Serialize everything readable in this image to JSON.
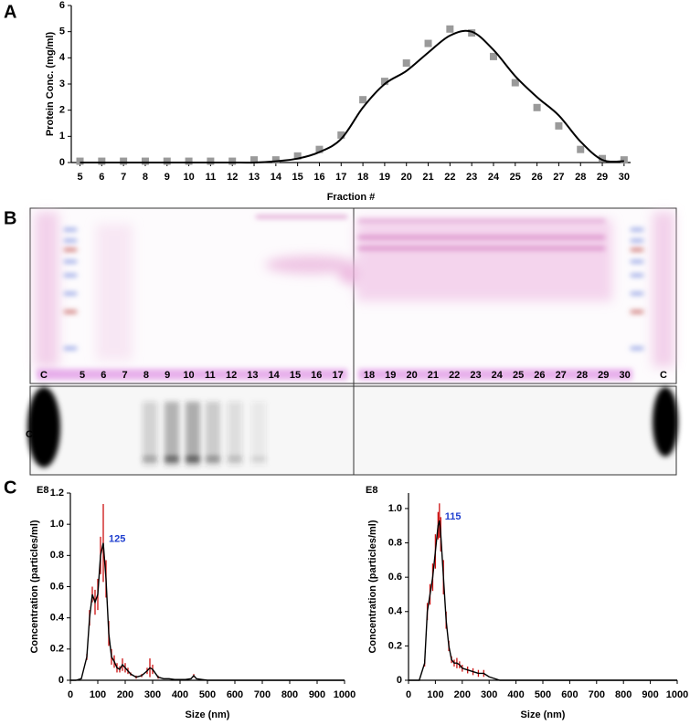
{
  "panel_labels": [
    "A",
    "B",
    "C"
  ],
  "chart_data": [
    {
      "type": "line",
      "y_label": "Protein Conc. (mg/ml)",
      "x_label": "Fraction #",
      "x": [
        5,
        6,
        7,
        8,
        9,
        10,
        11,
        12,
        13,
        14,
        15,
        16,
        17,
        18,
        19,
        20,
        21,
        22,
        23,
        24,
        25,
        26,
        27,
        28,
        29,
        30
      ],
      "xlim": [
        4.6,
        30.3
      ],
      "xticks": [
        5,
        6,
        7,
        8,
        9,
        10,
        11,
        12,
        13,
        14,
        15,
        16,
        17,
        18,
        19,
        20,
        21,
        22,
        23,
        24,
        25,
        26,
        27,
        28,
        29,
        30
      ],
      "ylim": [
        0,
        6
      ],
      "yticks": [
        0,
        1,
        2,
        3,
        4,
        5,
        6
      ],
      "series": [
        {
          "color": "#9a9a9a",
          "marker": "square",
          "line": false,
          "values": [
            0.05,
            0.05,
            0.05,
            0.05,
            0.05,
            0.05,
            0.05,
            0.05,
            0.1,
            0.1,
            0.25,
            0.5,
            1.05,
            2.4,
            3.1,
            3.8,
            4.55,
            5.1,
            4.95,
            4.05,
            3.05,
            2.1,
            1.4,
            0.5,
            0.15,
            0.1
          ]
        },
        {
          "color": "#000000",
          "line": true,
          "smooth": true,
          "values": [
            0,
            0,
            0,
            0,
            0,
            0,
            0,
            0,
            0,
            0.05,
            0.15,
            0.4,
            0.9,
            2.1,
            3.0,
            3.5,
            4.2,
            4.85,
            5.0,
            4.3,
            3.3,
            2.5,
            1.8,
            0.8,
            0.1,
            0.05
          ]
        }
      ]
    },
    {
      "type": "line",
      "y_label": "Concentration (particles/ml)",
      "x_label": "Size (nm)",
      "y_unit": "E8",
      "annotation": "125",
      "annotation_color": "#1f3fcf",
      "x": [
        0,
        20,
        40,
        60,
        70,
        80,
        90,
        100,
        110,
        120,
        130,
        140,
        150,
        160,
        170,
        180,
        190,
        200,
        210,
        220,
        240,
        260,
        280,
        290,
        300,
        320,
        340,
        360,
        380,
        400,
        420,
        440,
        450,
        460,
        480,
        500,
        600,
        700,
        800,
        900,
        1000
      ],
      "xlim": [
        0,
        1000
      ],
      "xticks": [
        0,
        100,
        200,
        300,
        400,
        500,
        600,
        700,
        800,
        900,
        1000
      ],
      "ylim": [
        0,
        1.2
      ],
      "yticks": [
        0,
        0.2,
        0.4,
        0.6,
        0.8,
        {
          "value": 1,
          "label": "1.0"
        },
        1.2
      ],
      "series": [
        {
          "color": "#000000",
          "line": true,
          "error_color": "#cc1111",
          "values": [
            0,
            0,
            0.01,
            0.15,
            0.4,
            0.55,
            0.5,
            0.55,
            0.8,
            0.88,
            0.65,
            0.3,
            0.15,
            0.12,
            0.08,
            0.07,
            0.1,
            0.08,
            0.06,
            0.04,
            0.02,
            0.03,
            0.06,
            0.08,
            0.07,
            0.02,
            0.01,
            0.01,
            0.005,
            0.005,
            0.005,
            0.01,
            0.03,
            0.01,
            0.005,
            0,
            0,
            0,
            0,
            0,
            0
          ],
          "errors": [
            0,
            0,
            0,
            0.02,
            0.05,
            0.05,
            0.08,
            0.1,
            0.12,
            0.25,
            0.12,
            0.08,
            0.05,
            0.04,
            0.03,
            0.02,
            0.04,
            0.03,
            0.02,
            0.01,
            0.01,
            0.01,
            0.02,
            0.06,
            0.03,
            0.01,
            0,
            0,
            0,
            0,
            0,
            0,
            0.01,
            0,
            0,
            0,
            0,
            0,
            0,
            0,
            0
          ]
        }
      ]
    },
    {
      "type": "line",
      "y_label": "Concentration (particles/ml)",
      "x_label": "Size (nm)",
      "y_unit": "E8",
      "annotation": "115",
      "annotation_color": "#1f3fcf",
      "x": [
        0,
        20,
        40,
        60,
        70,
        80,
        90,
        100,
        110,
        115,
        120,
        130,
        140,
        150,
        160,
        170,
        180,
        190,
        200,
        220,
        240,
        260,
        280,
        300,
        320,
        340,
        400,
        500,
        600,
        700,
        800,
        900,
        1000
      ],
      "xlim": [
        0,
        1000
      ],
      "xticks": [
        0,
        100,
        200,
        300,
        400,
        500,
        600,
        700,
        800,
        900,
        1000
      ],
      "ylim": [
        0,
        1.09
      ],
      "yticks": [
        0,
        0.2,
        0.4,
        0.6,
        0.8,
        {
          "value": 1,
          "label": "1.0"
        }
      ],
      "series": [
        {
          "color": "#000000",
          "line": true,
          "error_color": "#cc1111",
          "values": [
            0,
            0,
            0,
            0.1,
            0.4,
            0.5,
            0.6,
            0.75,
            0.9,
            0.93,
            0.85,
            0.6,
            0.35,
            0.2,
            0.12,
            0.1,
            0.1,
            0.09,
            0.07,
            0.06,
            0.05,
            0.04,
            0.04,
            0.02,
            0.01,
            0,
            0,
            0,
            0,
            0,
            0,
            0,
            0
          ],
          "errors": [
            0,
            0,
            0,
            0.02,
            0.05,
            0.06,
            0.08,
            0.1,
            0.08,
            0.1,
            0.1,
            0.1,
            0.05,
            0.03,
            0.02,
            0.02,
            0.03,
            0.02,
            0.02,
            0.02,
            0.02,
            0.02,
            0.02,
            0,
            0,
            0,
            0,
            0,
            0,
            0,
            0,
            0,
            0
          ]
        }
      ]
    }
  ],
  "gel": {
    "lanes_left": [
      "C",
      "5",
      "6",
      "7",
      "8",
      "9",
      "10",
      "11",
      "12",
      "13",
      "14",
      "15",
      "16",
      "17"
    ],
    "lanes_right": [
      "18",
      "19",
      "20",
      "21",
      "22",
      "23",
      "24",
      "25",
      "26",
      "27",
      "28",
      "29",
      "30",
      "C"
    ],
    "blot_label": "CD63"
  }
}
